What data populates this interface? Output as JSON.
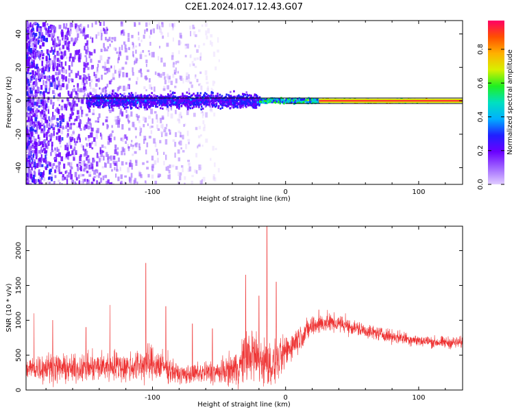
{
  "title": "C2E1.2024.017.12.43.G07",
  "colors": {
    "snr_line": "#ee3333",
    "axis": "#000000",
    "background": "#ffffff",
    "colormap": [
      "#e0ccff",
      "#a066ff",
      "#6a00ff",
      "#2020ff",
      "#00b0ff",
      "#00e0c0",
      "#20f020",
      "#d8f000",
      "#ffb000",
      "#ff5000",
      "#ff0066"
    ]
  },
  "chart_data": [
    {
      "type": "heatmap",
      "xlabel": "Height of straight line (km)",
      "ylabel": "Frequency (Hz)",
      "xlim": [
        -195,
        133
      ],
      "ylim": [
        -50,
        48
      ],
      "xticks": [
        -100,
        0,
        100
      ],
      "yticks": [
        -40,
        -20,
        0,
        20,
        40
      ],
      "colorbar": {
        "label": "Normalized spectral amplitude",
        "range": [
          0,
          0.97
        ],
        "ticks": [
          0.0,
          0.2,
          0.4,
          0.6,
          0.8
        ]
      },
      "grid": false,
      "ridge": {
        "frequency": 0,
        "x_start": -150,
        "segments": [
          {
            "x": [
              -150,
              -20
            ],
            "amplitude": 0.3,
            "spread_hz": 6
          },
          {
            "x": [
              -20,
              25
            ],
            "amplitude": 0.55,
            "spread_hz": 2
          },
          {
            "x": [
              25,
              133
            ],
            "amplitude": 0.85,
            "spread_hz": 1
          }
        ]
      },
      "noise_region": {
        "x": [
          -195,
          -50
        ],
        "frequency": [
          -50,
          48
        ],
        "amplitude": 0.15
      }
    },
    {
      "type": "line",
      "xlabel": "Height of straight line (km)",
      "ylabel": "SNR (10 * v/v)",
      "xlim": [
        -195,
        133
      ],
      "ylim": [
        0,
        2350
      ],
      "xticks": [
        -100,
        0,
        100
      ],
      "yticks": [
        0,
        500,
        1000,
        1500,
        2000
      ],
      "grid": false,
      "series": [
        {
          "x": [
            -195,
            -180,
            -160,
            -140,
            -130,
            -120,
            -110,
            -100,
            -90,
            -80,
            -70,
            -60,
            -50,
            -40,
            -35,
            -30,
            -25,
            -20,
            -15,
            -10,
            -5,
            0,
            10,
            20,
            30,
            40,
            50,
            60,
            70,
            80,
            90,
            100,
            110,
            120,
            133
          ],
          "mean": [
            300,
            330,
            300,
            330,
            360,
            320,
            360,
            380,
            330,
            220,
            230,
            250,
            250,
            300,
            330,
            460,
            520,
            430,
            400,
            350,
            420,
            550,
            750,
            920,
            970,
            950,
            900,
            850,
            810,
            770,
            740,
            710,
            690,
            680,
            680
          ],
          "spread": [
            200,
            220,
            200,
            220,
            250,
            220,
            260,
            280,
            230,
            130,
            150,
            180,
            180,
            240,
            300,
            380,
            420,
            380,
            350,
            320,
            300,
            250,
            200,
            160,
            150,
            130,
            120,
            110,
            100,
            100,
            100,
            90,
            90,
            90,
            90
          ],
          "spikes": [
            [
              -189,
              1100
            ],
            [
              -175,
              1000
            ],
            [
              -150,
              900
            ],
            [
              -132,
              1220
            ],
            [
              -105,
              1820
            ],
            [
              -90,
              1200
            ],
            [
              -70,
              950
            ],
            [
              -55,
              880
            ],
            [
              -30,
              1650
            ],
            [
              -20,
              1350
            ],
            [
              -14,
              2350
            ],
            [
              -7,
              1550
            ],
            [
              25,
              1150
            ],
            [
              45,
              1100
            ]
          ]
        }
      ]
    }
  ]
}
